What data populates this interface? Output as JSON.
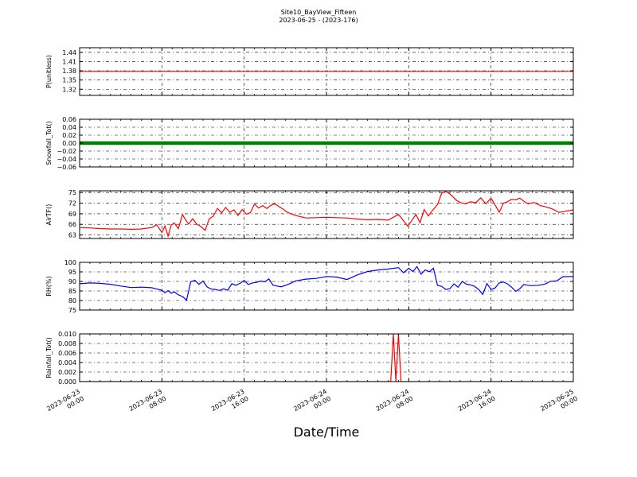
{
  "figure": {
    "title": "Site10_BayView_Fifteen",
    "subtitle": "2023-06-25 - (2023-176)",
    "xlabel": "Date/Time"
  },
  "chart_data": [
    {
      "type": "line",
      "ylabel": "P(unitless)",
      "color": "#ff0000",
      "grid": true,
      "ylim": [
        1.3,
        1.455
      ],
      "yticks": [
        1.32,
        1.35,
        1.38,
        1.41,
        1.44
      ],
      "ytick_labels": [
        "1.32",
        "1.35",
        "1.38",
        "1.41",
        "1.44"
      ],
      "xlim": [
        0,
        48
      ],
      "x": [
        0,
        48
      ],
      "values": [
        1.378,
        1.378
      ]
    },
    {
      "type": "line",
      "ylabel": "Snowfall_Tot()",
      "color": "#008000",
      "marker": "dot",
      "grid": true,
      "ylim": [
        -0.06,
        0.06
      ],
      "yticks": [
        -0.06,
        -0.04,
        -0.02,
        0.0,
        0.02,
        0.04,
        0.06
      ],
      "ytick_labels": [
        "−0.06",
        "−0.04",
        "−0.02",
        "0.00",
        "0.02",
        "0.04",
        "0.06"
      ],
      "xlim": [
        0,
        48
      ],
      "x": [
        0,
        48
      ],
      "values": [
        0,
        0
      ]
    },
    {
      "type": "line",
      "ylabel": "AirTF()",
      "color": "#ff0000",
      "grid": true,
      "ylim": [
        62,
        75.5
      ],
      "yticks": [
        63,
        66,
        69,
        72,
        75
      ],
      "ytick_labels": [
        "63",
        "66",
        "69",
        "72",
        "75"
      ],
      "xlim": [
        0,
        48
      ],
      "x": [
        0,
        1,
        2,
        3,
        4,
        5,
        6,
        7,
        7.5,
        8,
        8.3,
        8.6,
        8.9,
        9.2,
        9.6,
        10.0,
        10.3,
        10.6,
        11.0,
        11.4,
        11.8,
        12.2,
        12.6,
        13.0,
        13.4,
        13.8,
        14.2,
        14.6,
        15.0,
        15.4,
        15.8,
        16.2,
        16.6,
        17.0,
        17.4,
        17.8,
        18.2,
        18.6,
        19.0,
        19.4,
        19.8,
        20.2,
        21,
        22,
        23,
        24,
        25,
        26,
        27,
        28,
        29,
        30,
        31,
        31.5,
        31.9,
        32.3,
        32.7,
        33.1,
        33.5,
        33.9,
        34.3,
        34.8,
        35.2,
        35.6,
        36.0,
        36.3,
        36.6,
        37.0,
        37.5,
        38,
        38.5,
        39,
        39.5,
        40,
        40.4,
        40.8,
        41.2,
        41.6,
        42.0,
        42.4,
        42.8,
        43.2,
        43.6,
        44.2,
        44.8,
        45.4,
        46,
        46.6,
        47.2,
        48
      ],
      "values": [
        65.1,
        65.0,
        64.8,
        64.7,
        64.7,
        64.6,
        64.7,
        65.1,
        65.9,
        63.7,
        65.5,
        62.7,
        65.8,
        66.4,
        64.8,
        68.8,
        67.3,
        66.1,
        67.6,
        66.0,
        65.4,
        64.3,
        67.6,
        68.3,
        70.5,
        69.3,
        70.8,
        69.4,
        70.1,
        68.5,
        70.2,
        68.9,
        69.3,
        71.8,
        70.6,
        71.3,
        70.5,
        71.4,
        71.8,
        71.0,
        70.3,
        69.4,
        68.5,
        67.8,
        67.9,
        68.0,
        67.9,
        67.8,
        67.5,
        67.3,
        67.4,
        67.2,
        68.8,
        67.0,
        65.5,
        67.1,
        68.8,
        66.5,
        70.2,
        68.4,
        69.9,
        71.6,
        74.8,
        75.3,
        74.6,
        73.8,
        72.9,
        72.2,
        71.8,
        72.4,
        72.1,
        73.5,
        71.8,
        73.4,
        71.5,
        69.4,
        72.0,
        72.4,
        73.1,
        73.0,
        73.4,
        72.5,
        71.8,
        72.2,
        71.3,
        70.9,
        70.3,
        69.4,
        69.7,
        70.1
      ]
    },
    {
      "type": "line",
      "ylabel": "RH(%)",
      "color": "#0000ff",
      "grid": true,
      "ylim": [
        75,
        100
      ],
      "yticks": [
        75,
        80,
        85,
        90,
        95,
        100
      ],
      "ytick_labels": [
        "75",
        "80",
        "85",
        "90",
        "95",
        "100"
      ],
      "xlim": [
        0,
        48
      ],
      "x": [
        0,
        1,
        2,
        3,
        4,
        5,
        6,
        7,
        7.5,
        8,
        8.3,
        8.6,
        8.9,
        9.2,
        9.6,
        10.0,
        10.4,
        10.8,
        11.2,
        11.6,
        12.0,
        12.4,
        12.8,
        13.2,
        13.6,
        14.0,
        14.4,
        14.8,
        15.2,
        15.6,
        16.0,
        16.4,
        16.8,
        17.2,
        17.6,
        18.0,
        18.4,
        18.8,
        19.2,
        19.6,
        20.0,
        20.5,
        21,
        22,
        23,
        24,
        25,
        26,
        27,
        28,
        29,
        30,
        31,
        31.5,
        32,
        32.4,
        32.8,
        33.2,
        33.6,
        34.0,
        34.4,
        34.8,
        35.2,
        35.6,
        36.0,
        36.4,
        36.8,
        37.2,
        37.6,
        38.0,
        38.4,
        38.8,
        39.2,
        39.6,
        40.0,
        40.4,
        40.8,
        41.2,
        41.6,
        42.0,
        42.4,
        42.8,
        43.2,
        43.6,
        44.0,
        44.6,
        45.2,
        45.8,
        46.4,
        47,
        48
      ],
      "values": [
        88.8,
        89.2,
        89.0,
        88.5,
        87.6,
        86.8,
        87.0,
        86.7,
        86.0,
        85.4,
        84.0,
        85.2,
        83.8,
        84.6,
        83.0,
        82.1,
        80.2,
        89.8,
        90.6,
        88.5,
        90.2,
        87.1,
        86.0,
        85.8,
        85.3,
        86.1,
        85.4,
        88.8,
        88.0,
        89.0,
        90.5,
        88.4,
        89.2,
        89.5,
        90.2,
        89.8,
        91.3,
        88.1,
        87.6,
        87.2,
        87.9,
        89.0,
        90.3,
        91.2,
        91.6,
        92.6,
        92.3,
        91.0,
        93.4,
        95.2,
        96.0,
        96.5,
        97.2,
        94.6,
        96.9,
        95.2,
        97.8,
        93.8,
        96.0,
        95.1,
        96.9,
        87.9,
        87.4,
        85.8,
        86.2,
        88.7,
        87.0,
        90.0,
        88.6,
        88.2,
        87.4,
        85.8,
        83.2,
        88.9,
        85.8,
        86.6,
        89.2,
        89.7,
        88.7,
        87.0,
        84.8,
        86.2,
        88.4,
        88.0,
        87.8,
        88.0,
        88.5,
        90.1,
        90.3,
        92.5,
        92.6
      ]
    },
    {
      "type": "line",
      "ylabel": "Rainfall_Tot()",
      "color": "#ff0000",
      "grid": true,
      "ylim": [
        0,
        0.01
      ],
      "yticks": [
        0.0,
        0.002,
        0.004,
        0.006,
        0.008,
        0.01
      ],
      "ytick_labels": [
        "0.000",
        "0.002",
        "0.004",
        "0.006",
        "0.008",
        "0.010"
      ],
      "xlim": [
        0,
        48
      ],
      "x": [
        0,
        30.25,
        30.5,
        30.75,
        31.0,
        31.25,
        48
      ],
      "values": [
        0,
        0,
        0.01,
        0,
        0.01,
        0,
        0
      ]
    }
  ],
  "xaxis": {
    "ticks": [
      0,
      8,
      16,
      24,
      32,
      40,
      48
    ],
    "tick_labels": [
      [
        "2023-06-23",
        "00:00"
      ],
      [
        "2023-06-23",
        "08:00"
      ],
      [
        "2023-06-23",
        "16:00"
      ],
      [
        "2023-06-24",
        "00:00"
      ],
      [
        "2023-06-24",
        "08:00"
      ],
      [
        "2023-06-24",
        "16:00"
      ],
      [
        "2023-06-25",
        "00:00"
      ]
    ]
  }
}
